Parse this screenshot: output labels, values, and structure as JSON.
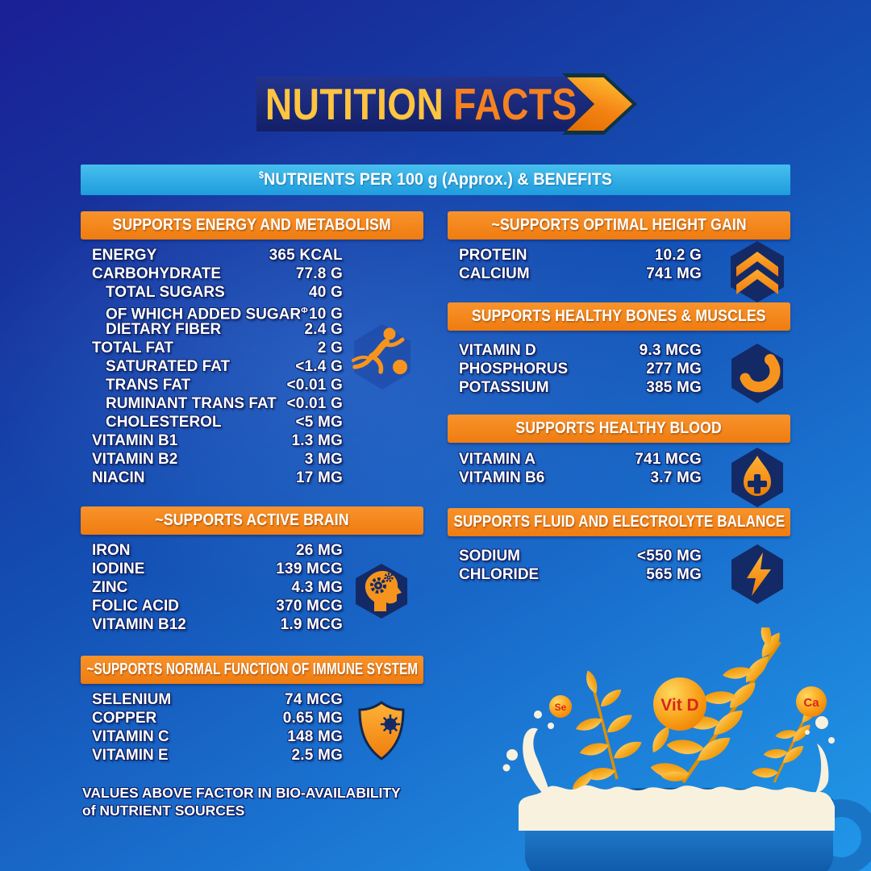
{
  "title": {
    "word1": "NUTITION",
    "word2": "FACTS"
  },
  "banner": {
    "sup": "$",
    "text": "NUTRIENTS PER 100 g (Approx.) & BENEFITS"
  },
  "sections": {
    "energy": {
      "header": "SUPPORTS ENERGY AND METABOLISM",
      "icon": "soccer-player-icon",
      "rows": [
        {
          "label": "ENERGY",
          "value": "365 KCAL"
        },
        {
          "label": "CARBOHYDRATE",
          "value": "77.8 G"
        },
        {
          "label": "TOTAL SUGARS",
          "value": "40 G",
          "indent": true
        },
        {
          "label": "OF WHICH ADDED SUGAR",
          "sup": "Φ",
          "value": "10 G",
          "indent": true
        },
        {
          "label": "DIETARY FIBER",
          "value": "2.4 G",
          "indent": true
        },
        {
          "label": "TOTAL FAT",
          "value": "2 G"
        },
        {
          "label": "SATURATED FAT",
          "value": "<1.4 G",
          "indent": true
        },
        {
          "label": "TRANS FAT",
          "value": "<0.01 G",
          "indent": true
        },
        {
          "label": "RUMINANT TRANS FAT",
          "value": "<0.01 G",
          "indent": true
        },
        {
          "label": "CHOLESTEROL",
          "value": "<5 MG",
          "indent": true
        },
        {
          "label": "VITAMIN B1",
          "value": "1.3 MG"
        },
        {
          "label": "VITAMIN B2",
          "value": "3 MG"
        },
        {
          "label": "NIACIN",
          "value": "17 MG"
        }
      ]
    },
    "brain": {
      "header": "~SUPPORTS ACTIVE BRAIN",
      "icon": "brain-gears-icon",
      "rows": [
        {
          "label": "IRON",
          "value": "26 MG"
        },
        {
          "label": "IODINE",
          "value": "139 MCG"
        },
        {
          "label": "ZINC",
          "value": "4.3 MG"
        },
        {
          "label": "FOLIC ACID",
          "value": "370 MCG"
        },
        {
          "label": "VITAMIN B12",
          "value": "1.9 MCG"
        }
      ]
    },
    "immune": {
      "header": "~SUPPORTS NORMAL FUNCTION OF IMMUNE SYSTEM",
      "icon": "shield-virus-icon",
      "rows": [
        {
          "label": "SELENIUM",
          "value": "74 MCG"
        },
        {
          "label": "COPPER",
          "value": "0.65 MG"
        },
        {
          "label": "VITAMIN C",
          "value": "148 MG"
        },
        {
          "label": "VITAMIN E",
          "value": "2.5 MG"
        }
      ]
    },
    "height": {
      "header": "~SUPPORTS OPTIMAL HEIGHT GAIN",
      "icon": "double-chevron-up-icon",
      "rows": [
        {
          "label": "PROTEIN",
          "value": "10.2 G"
        },
        {
          "label": "CALCIUM",
          "value": "741 MG"
        }
      ]
    },
    "bones": {
      "header": "SUPPORTS HEALTHY BONES & MUSCLES",
      "icon": "muscle-arm-icon",
      "rows": [
        {
          "label": "VITAMIN D",
          "value": "9.3 MCG"
        },
        {
          "label": "PHOSPHORUS",
          "value": "277 MG"
        },
        {
          "label": "POTASSIUM",
          "value": "385 MG"
        }
      ]
    },
    "blood": {
      "header": "SUPPORTS HEALTHY BLOOD",
      "icon": "blood-drop-cross-icon",
      "rows": [
        {
          "label": "VITAMIN A",
          "value": "741 MCG"
        },
        {
          "label": "VITAMIN B6",
          "value": "3.7 MG"
        }
      ]
    },
    "fluid": {
      "header": "SUPPORTS FLUID AND ELECTROLYTE BALANCE",
      "icon": "lightning-bolt-icon",
      "rows": [
        {
          "label": "SODIUM",
          "value": "<550 MG"
        },
        {
          "label": "CHLORIDE",
          "value": "565 MG"
        }
      ]
    }
  },
  "footnote": {
    "line1": "VALUES ABOVE FACTOR IN BIO-AVAILABILITY",
    "line2": "of NUTRIENT SOURCES"
  },
  "illustration": {
    "bubbles": [
      "Se",
      "Vit D",
      "Ca"
    ]
  },
  "colors": {
    "orange": "#F5821F",
    "golden_yellow": "#FFC440",
    "light_blue": "#29ABE2",
    "navy": "#15256E",
    "background_blue_top": "#1A1F95",
    "background_blue_bottom": "#1F8FE2",
    "milk_cream": "#F9F2DF",
    "bubble_text_red": "#D6281A"
  }
}
